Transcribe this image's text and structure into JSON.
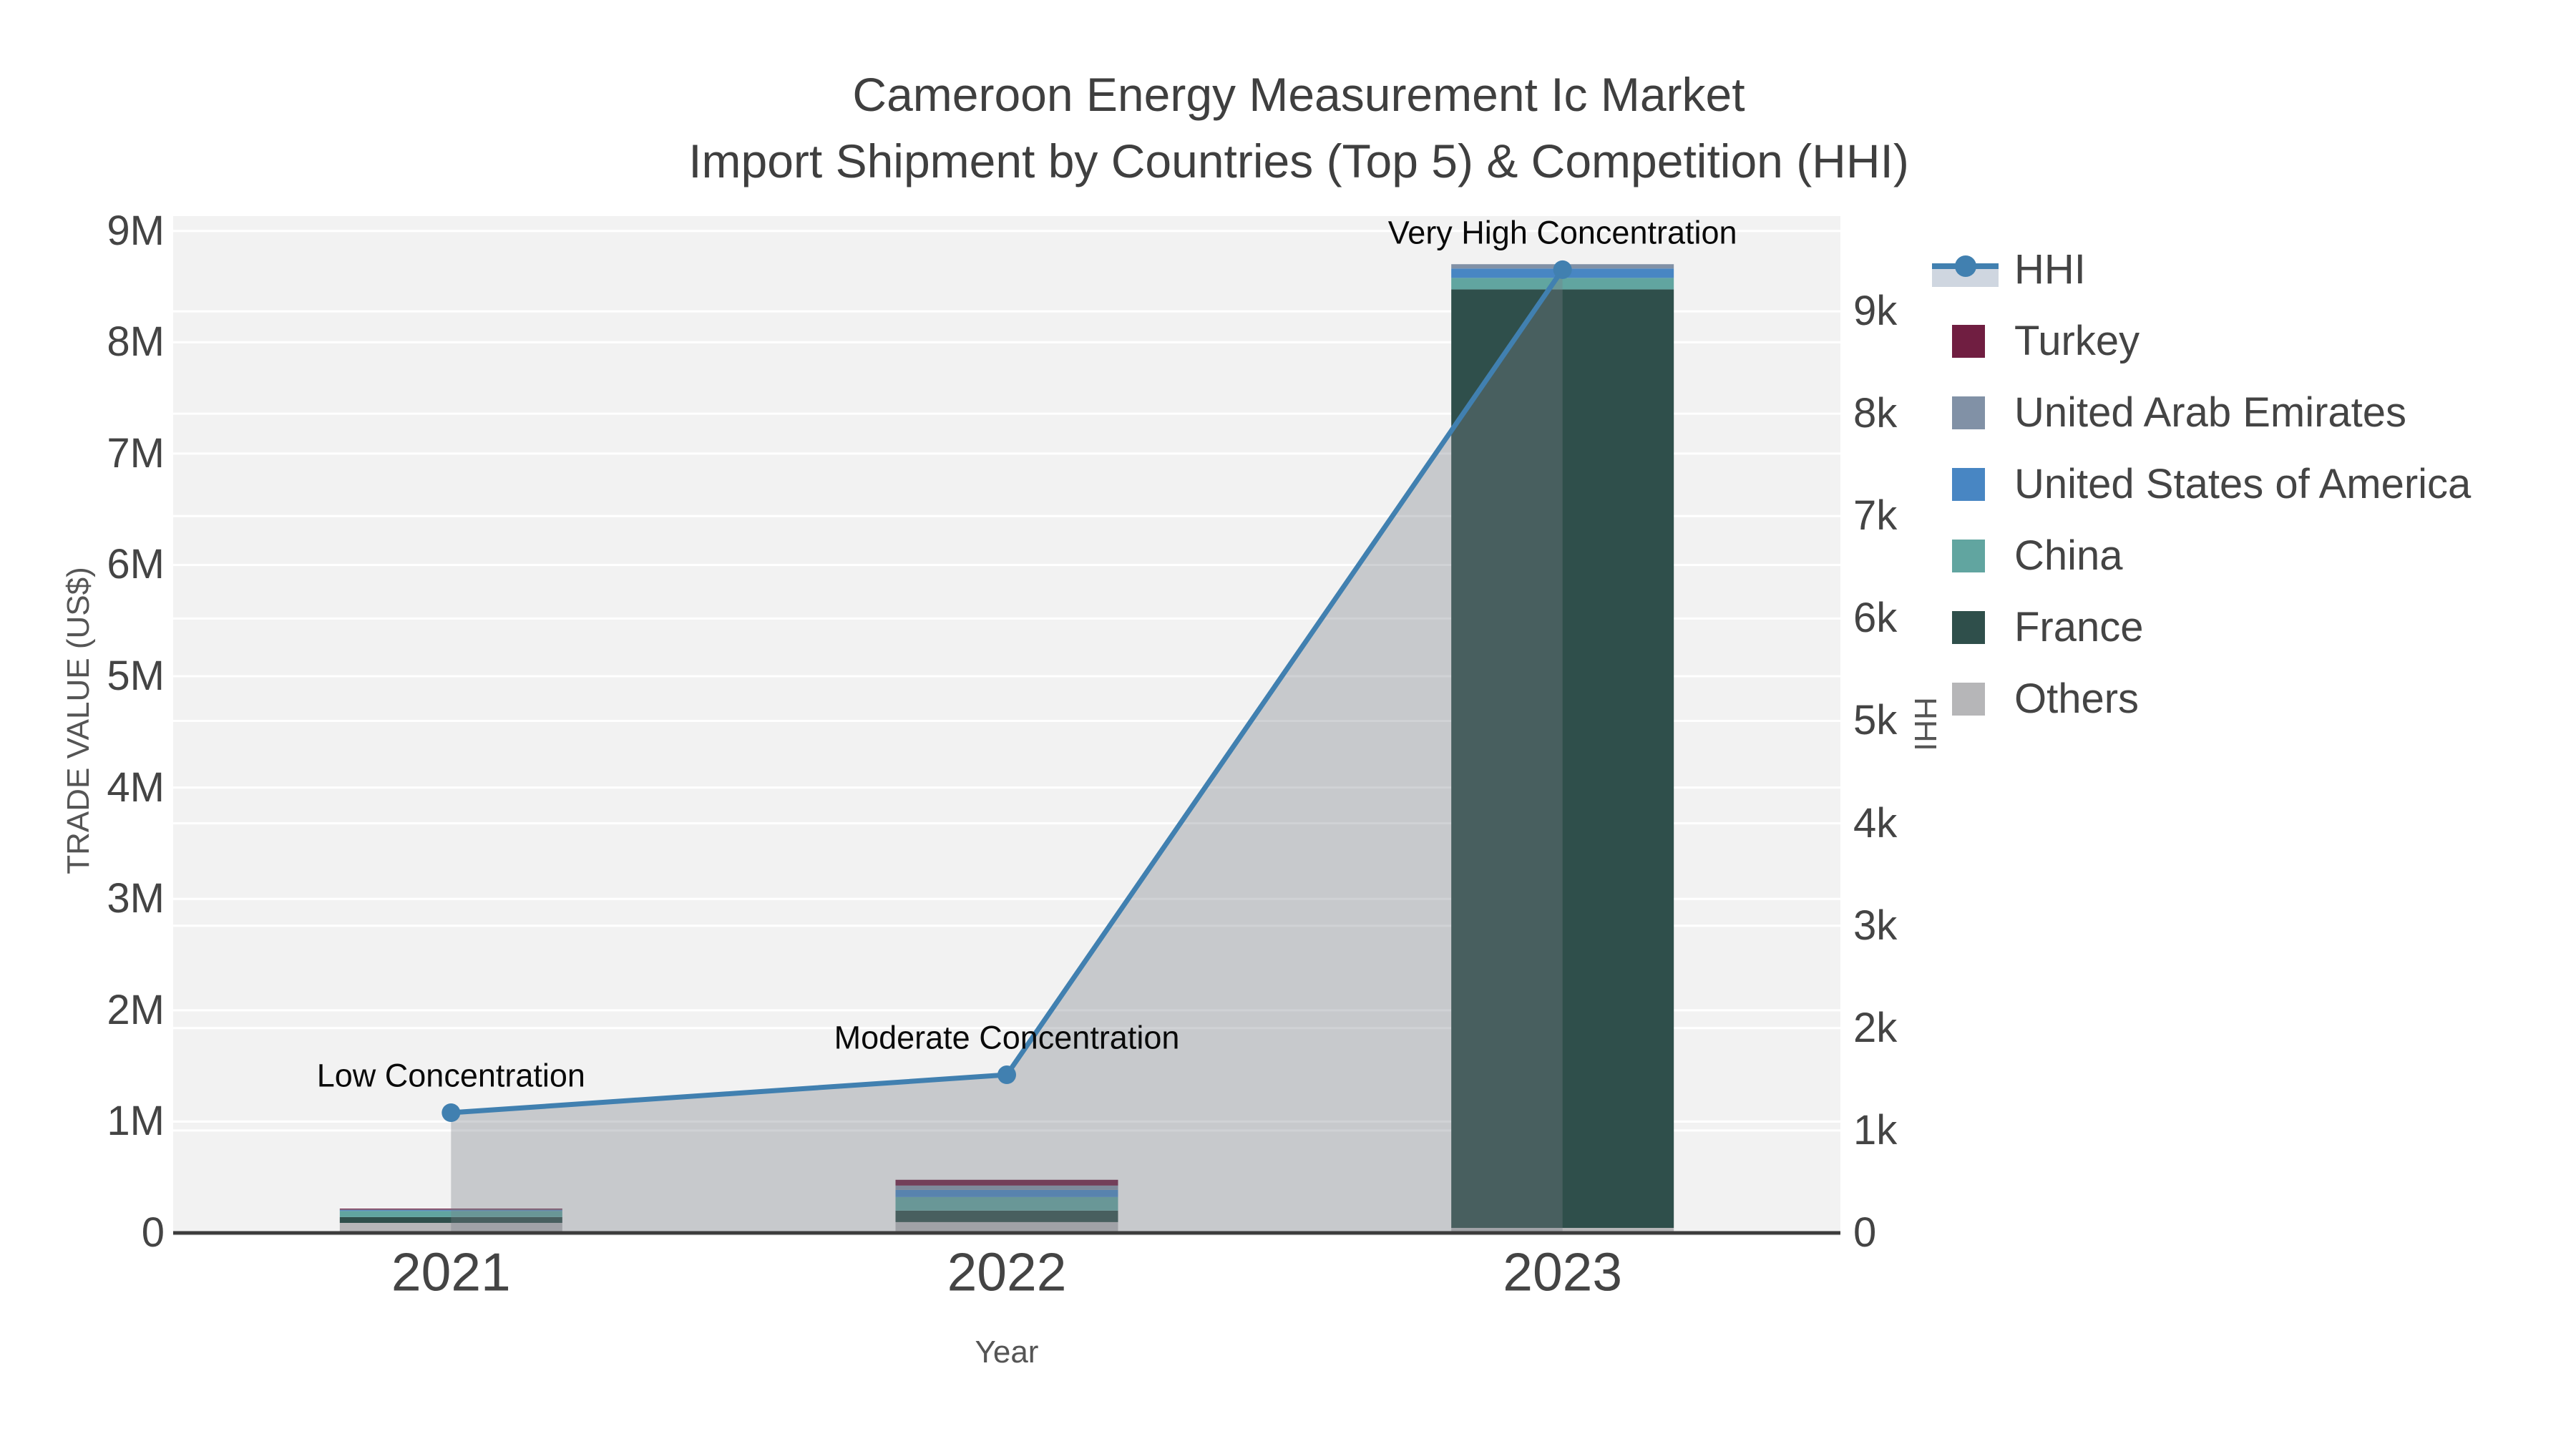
{
  "title": {
    "line1": "Cameroon Energy Measurement Ic Market",
    "line2": "Import Shipment by Countries (Top 5) & Competition (HHI)"
  },
  "axes": {
    "x": {
      "title": "Year"
    },
    "left": {
      "title": "TRADE VALUE (US$)",
      "tick_labels": [
        "0",
        "1M",
        "2M",
        "3M",
        "4M",
        "5M",
        "6M",
        "7M",
        "8M",
        "9M"
      ],
      "tick_step": 1000000
    },
    "right": {
      "title": "HHI",
      "tick_labels": [
        "0",
        "1k",
        "2k",
        "3k",
        "4k",
        "5k",
        "6k",
        "7k",
        "8k",
        "9k"
      ],
      "tick_step": 1000
    }
  },
  "legend": {
    "items": [
      {
        "label": "HHI",
        "type": "line",
        "color": "#4180b0",
        "fill": "#cfd6e0"
      },
      {
        "label": "Turkey",
        "type": "square",
        "color": "#701e41"
      },
      {
        "label": "United Arab Emirates",
        "type": "square",
        "color": "#8191a6"
      },
      {
        "label": "United States of America",
        "type": "square",
        "color": "#4886c3"
      },
      {
        "label": "China",
        "type": "square",
        "color": "#61a5a0"
      },
      {
        "label": "France",
        "type": "square",
        "color": "#2f4f4b"
      },
      {
        "label": "Others",
        "type": "square",
        "color": "#b6b6b8"
      }
    ]
  },
  "chart_data": {
    "type": "bar",
    "subtype": "stacked-bars-with-secondary-axis-line",
    "title": "Cameroon Energy Measurement Ic Market — Import Shipment by Countries (Top 5) & Competition (HHI)",
    "categories": [
      "2021",
      "2022",
      "2023"
    ],
    "xlabel": "Year",
    "ylabel": "TRADE VALUE (US$)",
    "ylabel_right": "HHI",
    "ylim_left": [
      0,
      9133000
    ],
    "ylim_right": [
      0,
      9930
    ],
    "grid": true,
    "legend_position": "right",
    "series": [
      {
        "name": "Turkey",
        "color": "#701e41",
        "values": [
          8000,
          52000,
          0
        ]
      },
      {
        "name": "United Arab Emirates",
        "color": "#8191a6",
        "values": [
          4000,
          39000,
          39000
        ]
      },
      {
        "name": "United States of America",
        "color": "#4886c3",
        "values": [
          9000,
          64000,
          84000
        ]
      },
      {
        "name": "China",
        "color": "#61a5a0",
        "values": [
          55000,
          122000,
          103000
        ]
      },
      {
        "name": "France",
        "color": "#2f4f4b",
        "values": [
          52000,
          103000,
          8430000
        ]
      },
      {
        "name": "Others",
        "color": "#b6b6b8",
        "values": [
          90000,
          97000,
          45000
        ]
      }
    ],
    "bar_totals": [
      218000,
      477000,
      8701000
    ],
    "line_series": {
      "name": "HHI",
      "axis": "right",
      "color": "#4180b0",
      "area_fill_color": "rgba(120,127,134,0.35)",
      "values": [
        1174,
        1544,
        9407
      ]
    },
    "annotations": [
      {
        "text": "Low Concentration",
        "category_index": 0
      },
      {
        "text": "Moderate Concentration",
        "category_index": 1
      },
      {
        "text": "Very High Concentration",
        "category_index": 2
      }
    ]
  }
}
